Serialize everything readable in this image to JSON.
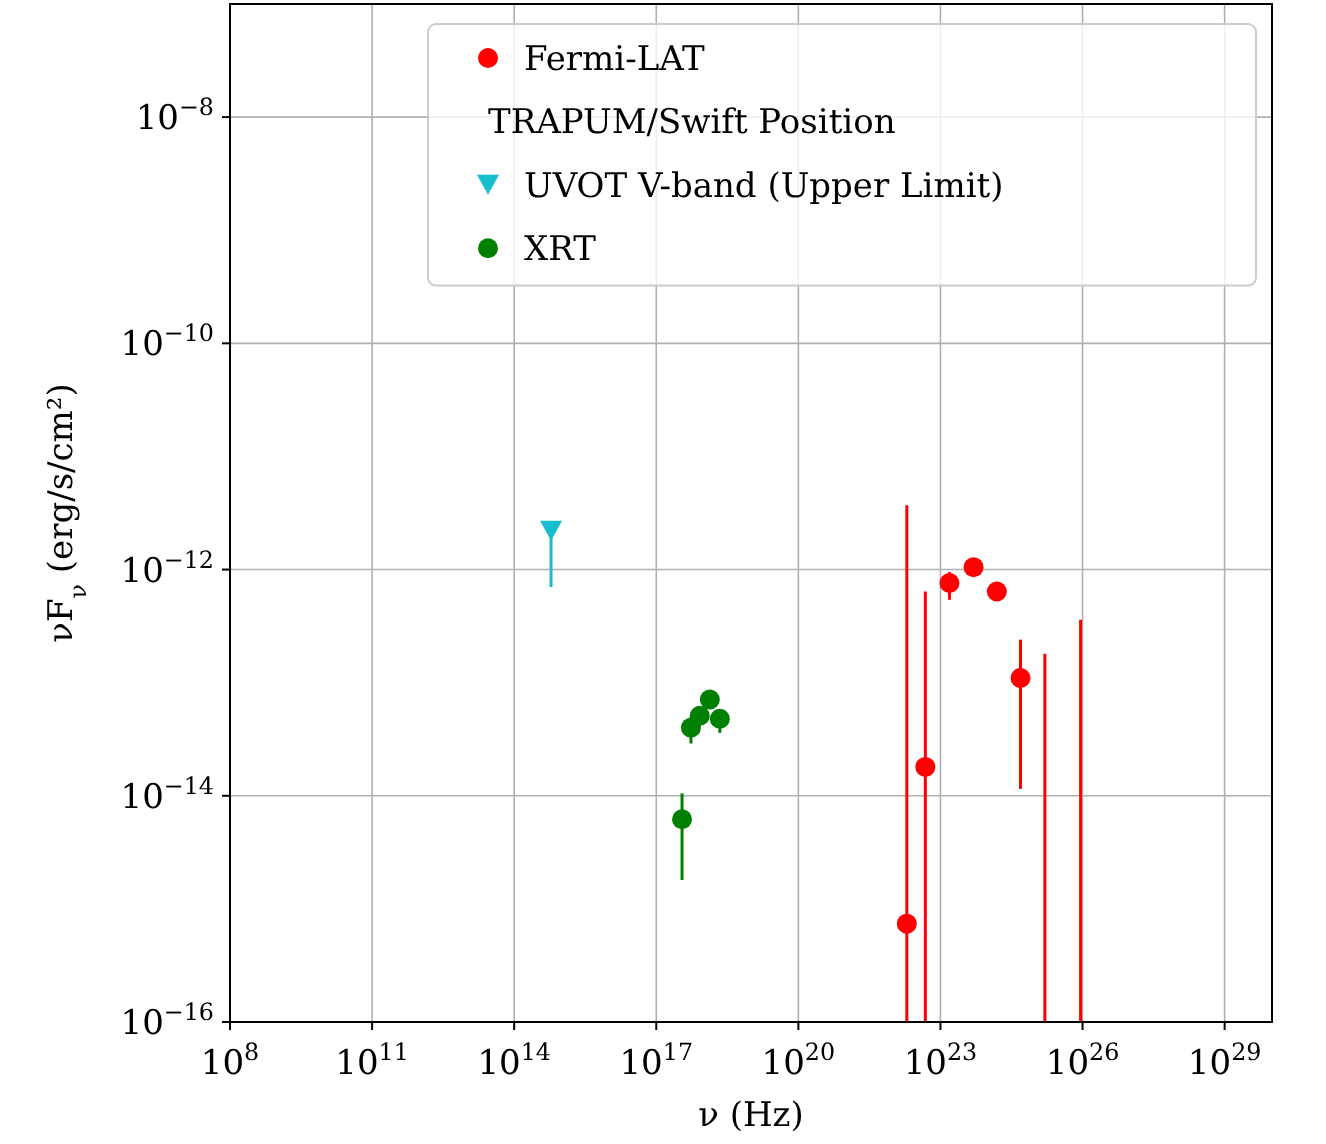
{
  "chart_data": {
    "type": "scatter",
    "xlabel": "ν (Hz)",
    "ylabel": "νF$_{ν}$  (erg/s/cm²)",
    "log": "xy",
    "grid": true,
    "legend": "top right",
    "xlim": [
      100000000.0,
      1e+30
    ],
    "ylim": [
      1e-16,
      1e-07
    ],
    "xticks": [
      {
        "value": 100000000.0,
        "label": "10$^{8}$"
      },
      {
        "value": 100000000000.0,
        "label": "10$^{11}$"
      },
      {
        "value": 100000000000000.0,
        "label": "10$^{14}$"
      },
      {
        "value": 1e+17,
        "label": "10$^{17}$"
      },
      {
        "value": 1e+20,
        "label": "10$^{20}$"
      },
      {
        "value": 1e+23,
        "label": "10$^{23}$"
      },
      {
        "value": 1e+26,
        "label": "10$^{26}$"
      },
      {
        "value": 1e+29,
        "label": "10$^{29}$"
      }
    ],
    "yticks": [
      {
        "value": 1e-16,
        "label": "10$^{−16}$"
      },
      {
        "value": 1e-14,
        "label": "10$^{−14}$"
      },
      {
        "value": 1e-12,
        "label": "10$^{−12}$"
      },
      {
        "value": 1e-10,
        "label": "10$^{−10}$"
      },
      {
        "value": 1e-08,
        "label": "10$^{−8}$"
      }
    ],
    "series": [
      {
        "name": "Fermi-LAT",
        "color": "#ff0000",
        "marker": "circle",
        "x": [
          1.95e+22,
          4.8e+22,
          1.55e+23,
          5e+23,
          1.55e+24,
          4.9e+24
        ],
        "values": [
          7.4e-16,
          1.8e-14,
          7.6e-13,
          1.05e-12,
          6.4e-13,
          1.1e-13
        ],
        "errors": [
          [
            1e-16,
            3.7e-12
          ],
          [
            1e-16,
            6.4e-13
          ],
          [
            5.4e-13,
            9.5e-13
          ],
          null,
          null,
          [
            1.15e-14,
            2.4e-13
          ]
        ]
      },
      {
        "name": "TRAPUM/Swift Position",
        "marker": "none"
      },
      {
        "name": "UVOT V-band (Upper Limit)",
        "color": "#17becf",
        "marker": "triangle",
        "x": [
          600000000000000.0
        ],
        "values": [
          2.2e-12
        ],
        "errors": [
          [
            7e-13,
            2.2e-12
          ]
        ]
      },
      {
        "name": "XRT",
        "color": "#008000",
        "marker": "circle",
        "x": [
          3.5e+17,
          5.4e+17,
          8.3e+17,
          1.35e+18,
          2.2e+18
        ],
        "values": [
          6.2e-15,
          4e-14,
          5.1e-14,
          7.1e-14,
          4.8e-14
        ],
        "errors": [
          [
            1.8e-15,
            1.05e-14
          ],
          [
            2.9e-14,
            5e-14
          ],
          null,
          null,
          [
            3.6e-14,
            5.5e-14
          ]
        ]
      },
      {
        "type": "line",
        "color": "#ff0000",
        "x": [
          1.6e+25,
          1.6e+25
        ],
        "values": [
          1e-16,
          1.8e-13
        ]
      },
      {
        "type": "line",
        "color": "#ff0000",
        "x": [
          9.1e+25,
          9.1e+25
        ],
        "values": [
          1e-16,
          3.6e-13
        ]
      }
    ]
  }
}
